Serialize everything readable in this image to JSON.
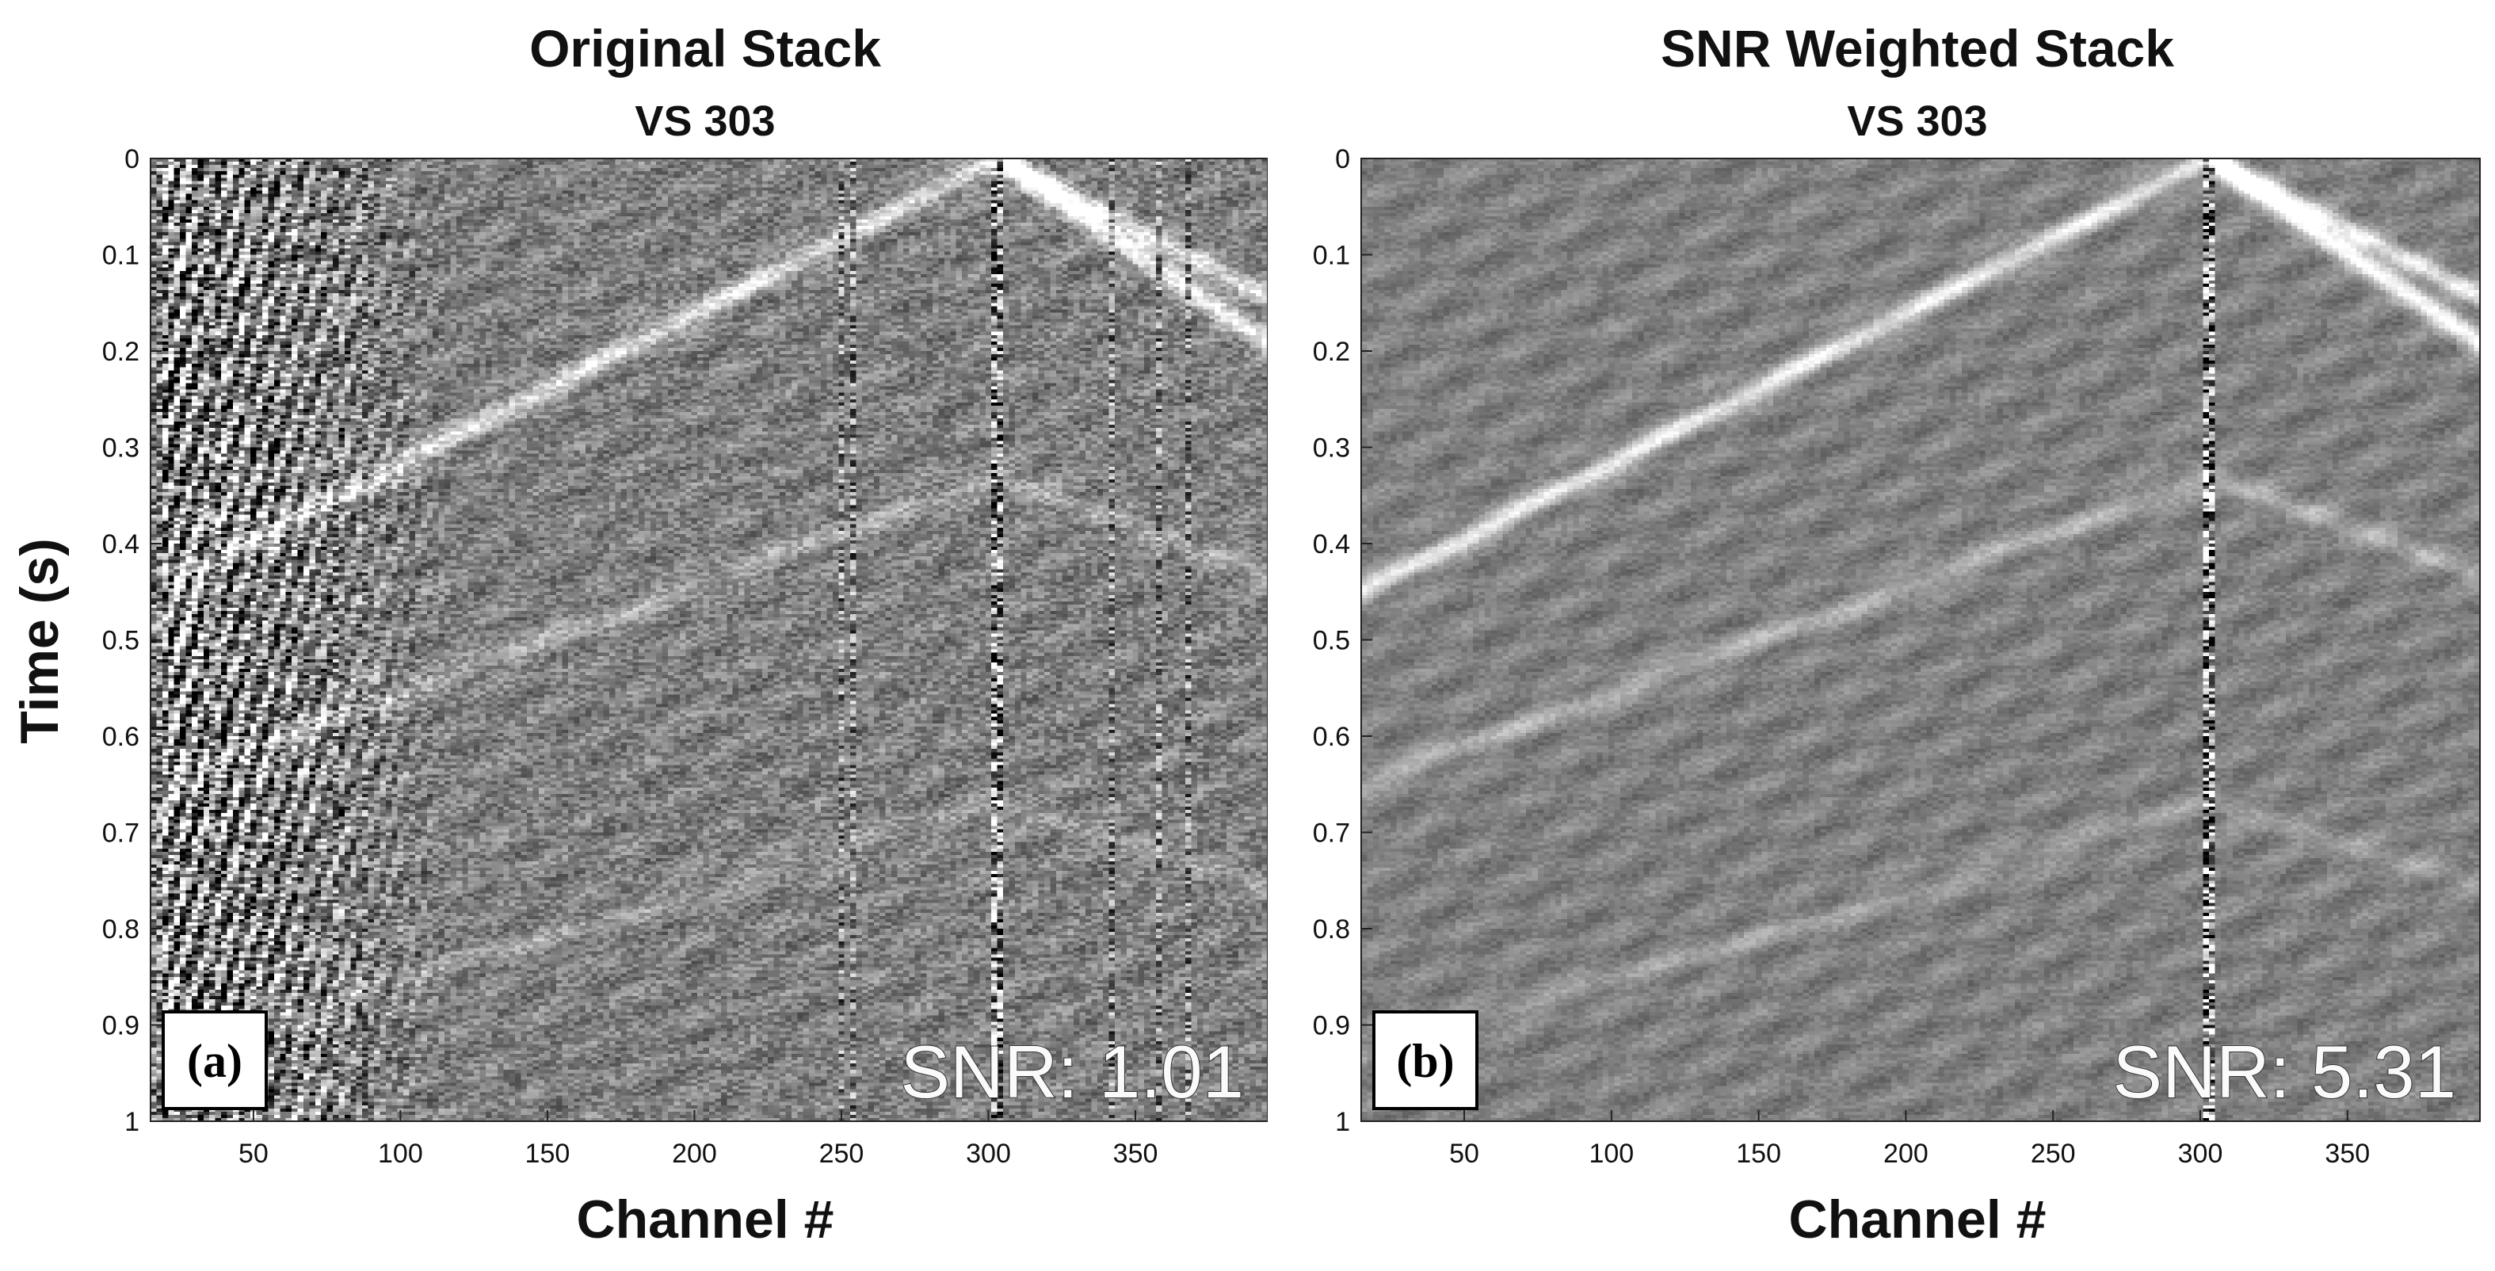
{
  "chart_data": [
    {
      "type": "heatmap",
      "panel_tag": "(a)",
      "title": "Original Stack",
      "subtitle": "VS 303",
      "xlabel": "Channel #",
      "ylabel": "Time (s)",
      "xlim": [
        15,
        395
      ],
      "ylim": [
        0,
        1
      ],
      "y_inverted": true,
      "colormap": "grayscale",
      "x_ticks": [
        50,
        100,
        150,
        200,
        250,
        300,
        350
      ],
      "y_ticks": [
        0,
        0.1,
        0.2,
        0.3,
        0.4,
        0.5,
        0.6,
        0.7,
        0.8,
        0.9,
        1
      ],
      "y_tick_labels": [
        "0",
        "0.1",
        "0.2",
        "0.3",
        "0.4",
        "0.5",
        "0.6",
        "0.7",
        "0.8",
        "0.9",
        "1"
      ],
      "annotation": "SNR: 1.01",
      "source_channel": 303
    },
    {
      "type": "heatmap",
      "panel_tag": "(b)",
      "title": "SNR Weighted Stack",
      "subtitle": "VS 303",
      "xlabel": "Channel #",
      "ylabel": "",
      "xlim": [
        15,
        395
      ],
      "ylim": [
        0,
        1
      ],
      "y_inverted": true,
      "colormap": "grayscale",
      "x_ticks": [
        50,
        100,
        150,
        200,
        250,
        300,
        350
      ],
      "y_ticks": [
        0,
        0.1,
        0.2,
        0.3,
        0.4,
        0.5,
        0.6,
        0.7,
        0.8,
        0.9,
        1
      ],
      "y_tick_labels": [
        "0",
        "0.1",
        "0.2",
        "0.3",
        "0.4",
        "0.5",
        "0.6",
        "0.7",
        "0.8",
        "0.9",
        "1"
      ],
      "annotation": "SNR: 5.31",
      "source_channel": 303
    }
  ]
}
